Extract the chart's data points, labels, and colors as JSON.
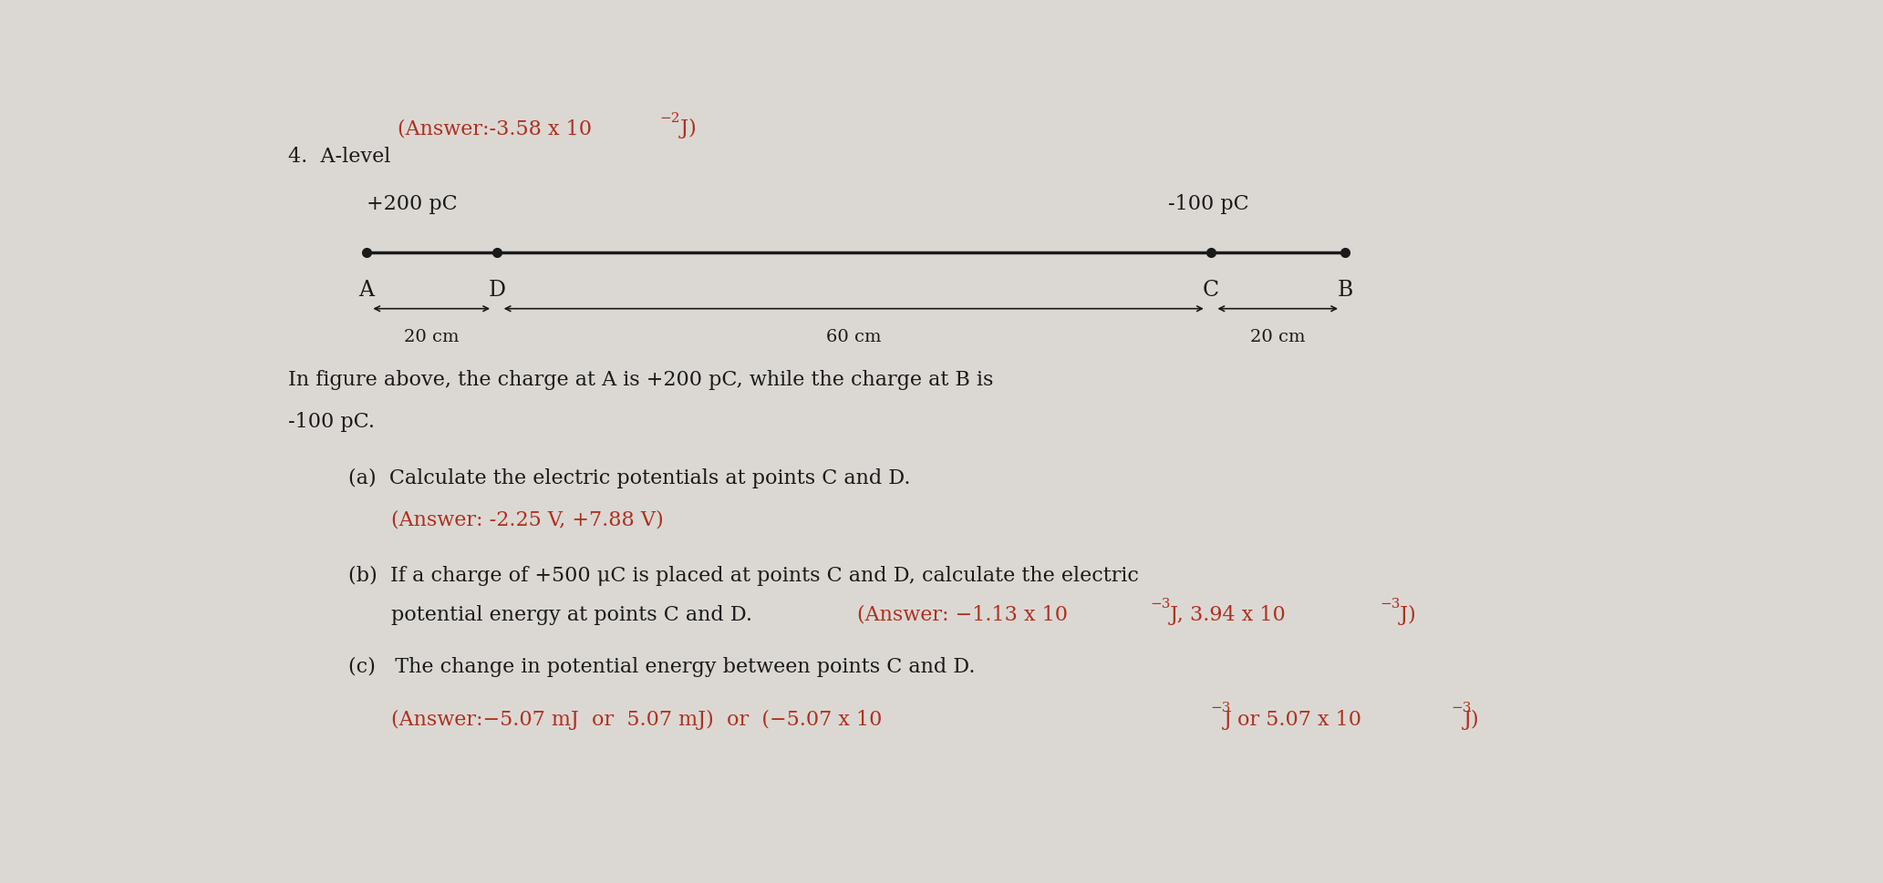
{
  "background_color": "#dbd8d3",
  "text_color": "#1a1a1a",
  "answer_color": "#b03020",
  "line_color": "#1a1a1a",
  "font_size": 16,
  "font_size_small": 14,
  "font_size_super": 11,
  "charge_A_label": "+200 pC",
  "charge_B_label": "-100 pC",
  "point_A": "A",
  "point_B": "B",
  "point_C": "C",
  "point_D": "D",
  "dist_AD": "20 cm",
  "dist_DC": "60 cm",
  "dist_CB": "20 cm"
}
